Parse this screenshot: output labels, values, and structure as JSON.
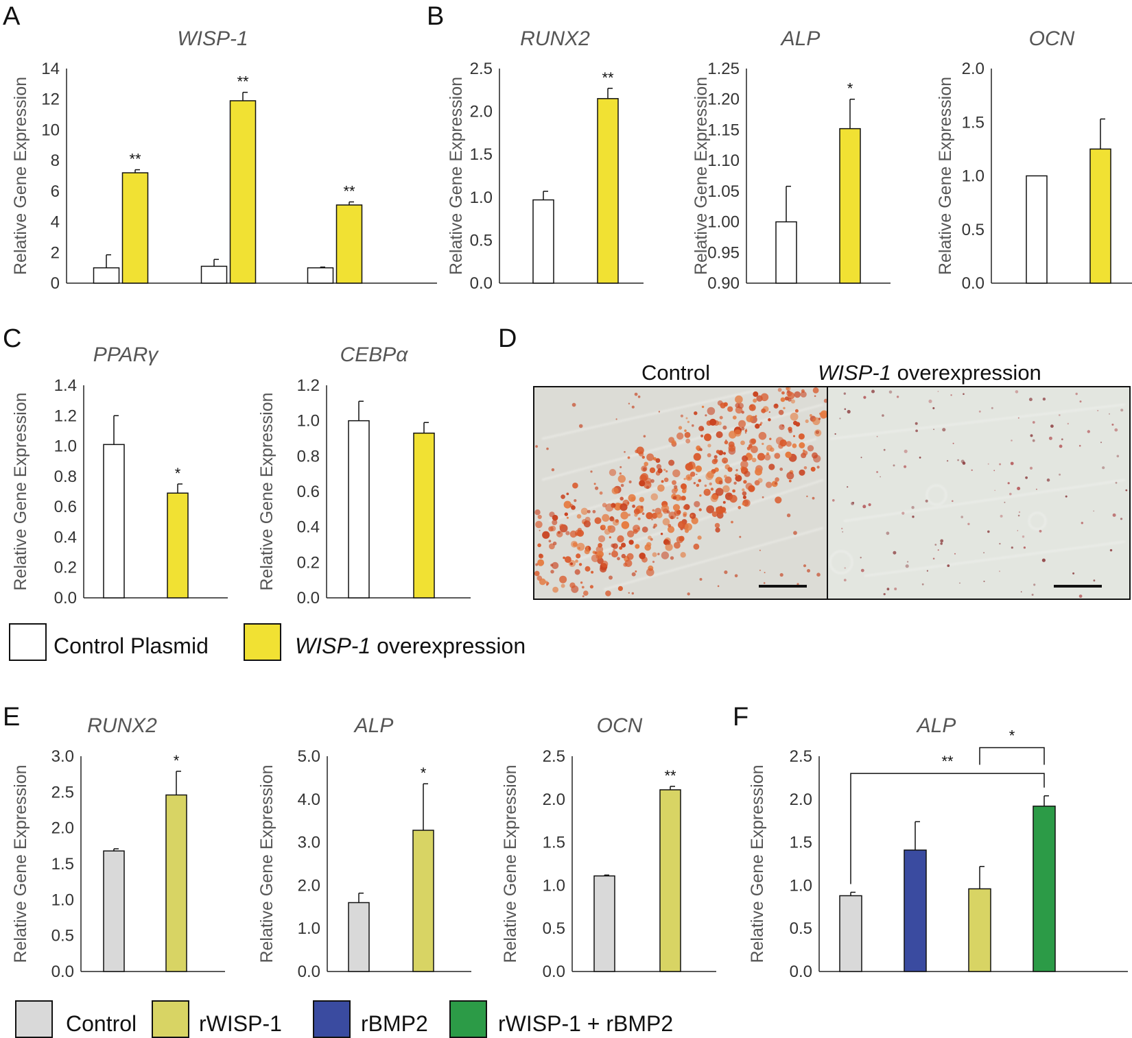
{
  "panels": {
    "A": "A",
    "B": "B",
    "C": "C",
    "D": "D",
    "E": "E",
    "F": "F"
  },
  "colors": {
    "control_plasmid": "#ffffff",
    "wisp1_overexpression": "#f1e133",
    "control": "#d9d9d9",
    "rwisp1": "#d8d464",
    "rbmp2": "#3a4ba0",
    "rwisp1_rbmp2": "#2c9b47"
  },
  "chart_data": [
    {
      "id": "A",
      "type": "bar",
      "title": "WISP-1",
      "ylabel": "Relative Gene Expression",
      "ylim": [
        0,
        14
      ],
      "yticks": [
        "0",
        "2",
        "4",
        "6",
        "8",
        "10",
        "12",
        "14"
      ],
      "ytick_values": [
        0,
        2,
        4,
        6,
        8,
        10,
        12,
        14
      ],
      "groups": 3,
      "bars": [
        {
          "group": 0,
          "value": 1.0,
          "err": 0.85,
          "color": "control_plasmid",
          "sig": ""
        },
        {
          "group": 0,
          "value": 7.2,
          "err": 0.2,
          "color": "wisp1_overexpression",
          "sig": "**"
        },
        {
          "group": 1,
          "value": 1.1,
          "err": 0.45,
          "color": "control_plasmid",
          "sig": ""
        },
        {
          "group": 1,
          "value": 11.9,
          "err": 0.55,
          "color": "wisp1_overexpression",
          "sig": "**"
        },
        {
          "group": 2,
          "value": 1.0,
          "err": 0.05,
          "color": "control_plasmid",
          "sig": ""
        },
        {
          "group": 2,
          "value": 5.1,
          "err": 0.2,
          "color": "wisp1_overexpression",
          "sig": "**"
        }
      ]
    },
    {
      "id": "B1",
      "type": "bar",
      "title": "RUNX2",
      "ylabel": "Relative Gene Expression",
      "ylim": [
        0,
        2.5
      ],
      "yticks": [
        "0.0",
        "0.5",
        "1.0",
        "1.5",
        "2.0",
        "2.5"
      ],
      "ytick_values": [
        0,
        0.5,
        1.0,
        1.5,
        2.0,
        2.5
      ],
      "bars": [
        {
          "value": 0.97,
          "err": 0.1,
          "color": "control_plasmid",
          "sig": ""
        },
        {
          "value": 2.15,
          "err": 0.12,
          "color": "wisp1_overexpression",
          "sig": "**"
        }
      ]
    },
    {
      "id": "B2",
      "type": "bar",
      "title": "ALP",
      "ylabel": "Relative Gene Expression",
      "ylim": [
        0.9,
        1.25
      ],
      "yticks": [
        "0.90",
        "0.95",
        "1.00",
        "1.05",
        "1.10",
        "1.15",
        "1.20",
        "1.25"
      ],
      "ytick_values": [
        0.9,
        0.95,
        1.0,
        1.05,
        1.1,
        1.15,
        1.2,
        1.25
      ],
      "bars": [
        {
          "value": 1.0,
          "err": 0.058,
          "color": "control_plasmid",
          "sig": ""
        },
        {
          "value": 1.152,
          "err": 0.048,
          "color": "wisp1_overexpression",
          "sig": "*"
        }
      ]
    },
    {
      "id": "B3",
      "type": "bar",
      "title": "OCN",
      "ylabel": "Relative Gene Expression",
      "ylim": [
        0,
        2.0
      ],
      "yticks": [
        "0.0",
        "0.5",
        "1.0",
        "1.5",
        "2.0"
      ],
      "ytick_values": [
        0,
        0.5,
        1.0,
        1.5,
        2.0
      ],
      "bars": [
        {
          "value": 1.0,
          "err": 0.0,
          "color": "control_plasmid",
          "sig": ""
        },
        {
          "value": 1.25,
          "err": 0.28,
          "color": "wisp1_overexpression",
          "sig": ""
        }
      ]
    },
    {
      "id": "C1",
      "type": "bar",
      "title": "PPARγ",
      "ylabel": "Relative Gene Expression",
      "ylim": [
        0,
        1.4
      ],
      "yticks": [
        "0.0",
        "0.2",
        "0.4",
        "0.6",
        "0.8",
        "1.0",
        "1.2",
        "1.4"
      ],
      "ytick_values": [
        0,
        0.2,
        0.4,
        0.6,
        0.8,
        1.0,
        1.2,
        1.4
      ],
      "bars": [
        {
          "value": 1.01,
          "err": 0.19,
          "color": "control_plasmid",
          "sig": ""
        },
        {
          "value": 0.69,
          "err": 0.06,
          "color": "wisp1_overexpression",
          "sig": "*"
        }
      ]
    },
    {
      "id": "C2",
      "type": "bar",
      "title": "CEBPα",
      "ylabel": "Relative Gene Expression",
      "ylim": [
        0,
        1.2
      ],
      "yticks": [
        "0.0",
        "0.2",
        "0.4",
        "0.6",
        "0.8",
        "1.0",
        "1.2"
      ],
      "ytick_values": [
        0,
        0.2,
        0.4,
        0.6,
        0.8,
        1.0,
        1.2
      ],
      "bars": [
        {
          "value": 1.0,
          "err": 0.11,
          "color": "control_plasmid",
          "sig": ""
        },
        {
          "value": 0.93,
          "err": 0.06,
          "color": "wisp1_overexpression",
          "sig": ""
        }
      ]
    },
    {
      "id": "E1",
      "type": "bar",
      "title": "RUNX2",
      "ylabel": "Relative Gene Expression",
      "ylim": [
        0,
        3.0
      ],
      "yticks": [
        "0.0",
        "0.5",
        "1.0",
        "1.5",
        "2.0",
        "2.5",
        "3.0"
      ],
      "ytick_values": [
        0,
        0.5,
        1.0,
        1.5,
        2.0,
        2.5,
        3.0
      ],
      "bars": [
        {
          "value": 1.68,
          "err": 0.03,
          "color": "control",
          "sig": ""
        },
        {
          "value": 2.46,
          "err": 0.33,
          "color": "rwisp1",
          "sig": "*"
        }
      ]
    },
    {
      "id": "E2",
      "type": "bar",
      "title": "ALP",
      "ylabel": "Relative Gene Expression",
      "ylim": [
        0,
        5.0
      ],
      "yticks": [
        "0.0",
        "1.0",
        "2.0",
        "3.0",
        "4.0",
        "5.0"
      ],
      "ytick_values": [
        0,
        1.0,
        2.0,
        3.0,
        4.0,
        5.0
      ],
      "bars": [
        {
          "value": 1.6,
          "err": 0.22,
          "color": "control",
          "sig": ""
        },
        {
          "value": 3.28,
          "err": 1.08,
          "color": "rwisp1",
          "sig": "*"
        }
      ]
    },
    {
      "id": "E3",
      "type": "bar",
      "title": "OCN",
      "ylabel": "Relative Gene Expression",
      "ylim": [
        0,
        2.5
      ],
      "yticks": [
        "0.0",
        "0.5",
        "1.0",
        "1.5",
        "2.0",
        "2.5"
      ],
      "ytick_values": [
        0,
        0.5,
        1.0,
        1.5,
        2.0,
        2.5
      ],
      "bars": [
        {
          "value": 1.11,
          "err": 0.01,
          "color": "control",
          "sig": ""
        },
        {
          "value": 2.11,
          "err": 0.04,
          "color": "rwisp1",
          "sig": "**"
        }
      ]
    },
    {
      "id": "F",
      "type": "bar",
      "title": "ALP",
      "ylabel": "Relative Gene Expression",
      "ylim": [
        0,
        2.5
      ],
      "yticks": [
        "0.0",
        "0.5",
        "1.0",
        "1.5",
        "2.0",
        "2.5"
      ],
      "ytick_values": [
        0,
        0.5,
        1.0,
        1.5,
        2.0,
        2.5
      ],
      "bars": [
        {
          "value": 0.88,
          "err": 0.04,
          "color": "control",
          "sig": ""
        },
        {
          "value": 1.41,
          "err": 0.33,
          "color": "rbmp2",
          "sig": ""
        },
        {
          "value": 0.96,
          "err": 0.26,
          "color": "rwisp1",
          "sig": ""
        },
        {
          "value": 1.92,
          "err": 0.12,
          "color": "rwisp1_rbmp2",
          "sig": ""
        }
      ],
      "brackets": [
        {
          "from": 0,
          "to": 3,
          "level": 2.3,
          "label": "**"
        },
        {
          "from": 2,
          "to": 3,
          "level": 2.6,
          "label": "*"
        }
      ]
    }
  ],
  "photo": {
    "left_label": "Control",
    "right_label_italic": "WISP-1",
    "right_label_rest": " overexpression"
  },
  "legend1": {
    "control_plasmid": "Control Plasmid",
    "wisp1_italic": "WISP-1",
    "wisp1_rest": " overexpression"
  },
  "legend2": {
    "control": "Control",
    "rwisp1": "rWISP-1",
    "rbmp2": "rBMP2",
    "rwisp1_rbmp2": "rWISP-1 + rBMP2"
  }
}
